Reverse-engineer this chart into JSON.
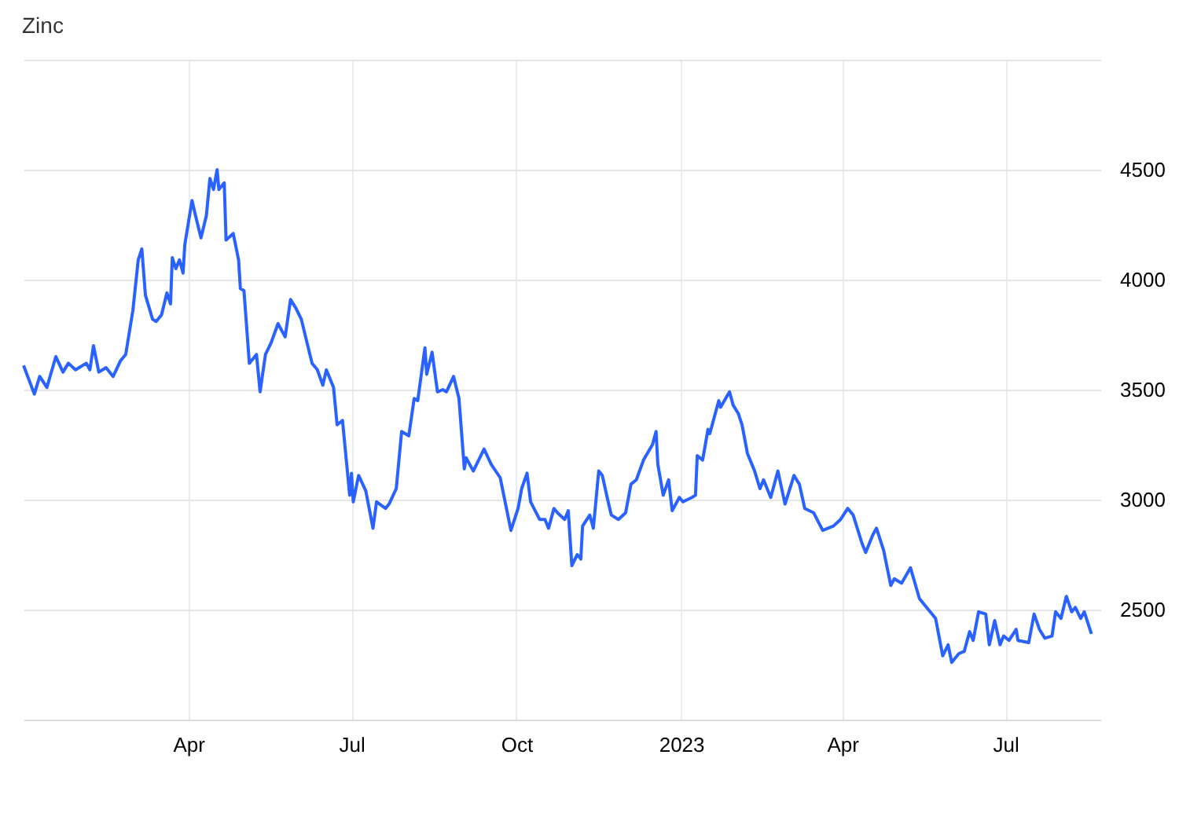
{
  "chart_data": {
    "type": "line",
    "title": "Zinc",
    "x": [
      "2021-12-30",
      "2022-01-05",
      "2022-01-08",
      "2022-01-12",
      "2022-01-17",
      "2022-01-21",
      "2022-01-24",
      "2022-01-28",
      "2022-02-03",
      "2022-02-05",
      "2022-02-07",
      "2022-02-10",
      "2022-02-14",
      "2022-02-18",
      "2022-02-22",
      "2022-02-25",
      "2022-03-01",
      "2022-03-04",
      "2022-03-06",
      "2022-03-08",
      "2022-03-12",
      "2022-03-14",
      "2022-03-17",
      "2022-03-20",
      "2022-03-22",
      "2022-03-23",
      "2022-03-25",
      "2022-03-27",
      "2022-03-29",
      "2022-03-30",
      "2022-04-03",
      "2022-04-05",
      "2022-04-08",
      "2022-04-11",
      "2022-04-13",
      "2022-04-15",
      "2022-04-17",
      "2022-04-18",
      "2022-04-21",
      "2022-04-22",
      "2022-04-26",
      "2022-04-29",
      "2022-04-30",
      "2022-05-02",
      "2022-05-05",
      "2022-05-09",
      "2022-05-11",
      "2022-05-14",
      "2022-05-17",
      "2022-05-21",
      "2022-05-25",
      "2022-05-28",
      "2022-05-31",
      "2022-06-03",
      "2022-06-09",
      "2022-06-12",
      "2022-06-15",
      "2022-06-17",
      "2022-06-21",
      "2022-06-23",
      "2022-06-26",
      "2022-06-30",
      "2022-07-01",
      "2022-07-02",
      "2022-07-05",
      "2022-07-09",
      "2022-07-13",
      "2022-07-15",
      "2022-07-20",
      "2022-07-22",
      "2022-07-26",
      "2022-07-29",
      "2022-08-02",
      "2022-08-05",
      "2022-08-07",
      "2022-08-11",
      "2022-08-12",
      "2022-08-15",
      "2022-08-18",
      "2022-08-21",
      "2022-08-23",
      "2022-08-27",
      "2022-08-30",
      "2022-09-02",
      "2022-09-03",
      "2022-09-07",
      "2022-09-13",
      "2022-09-17",
      "2022-09-22",
      "2022-09-28",
      "2022-10-02",
      "2022-10-04",
      "2022-10-07",
      "2022-10-09",
      "2022-10-14",
      "2022-10-17",
      "2022-10-19",
      "2022-10-22",
      "2022-10-24",
      "2022-10-28",
      "2022-10-30",
      "2022-11-01",
      "2022-11-04",
      "2022-11-06",
      "2022-11-07",
      "2022-11-11",
      "2022-11-13",
      "2022-11-16",
      "2022-11-18",
      "2022-11-21",
      "2022-11-23",
      "2022-11-27",
      "2022-12-01",
      "2022-12-04",
      "2022-12-07",
      "2022-12-11",
      "2022-12-16",
      "2022-12-18",
      "2022-12-19",
      "2022-12-22",
      "2022-12-25",
      "2022-12-27",
      "2022-12-31",
      "2023-01-02",
      "2023-01-07",
      "2023-01-09",
      "2023-01-10",
      "2023-01-13",
      "2023-01-16",
      "2023-01-17",
      "2023-01-22",
      "2023-01-23",
      "2023-01-28",
      "2023-01-30",
      "2023-02-02",
      "2023-02-04",
      "2023-02-07",
      "2023-02-11",
      "2023-02-14",
      "2023-02-16",
      "2023-02-20",
      "2023-02-24",
      "2023-02-28",
      "2023-03-05",
      "2023-03-08",
      "2023-03-11",
      "2023-03-16",
      "2023-03-21",
      "2023-03-27",
      "2023-03-31",
      "2023-04-04",
      "2023-04-07",
      "2023-04-12",
      "2023-04-14",
      "2023-04-18",
      "2023-04-20",
      "2023-04-24",
      "2023-04-28",
      "2023-04-30",
      "2023-05-04",
      "2023-05-09",
      "2023-05-14",
      "2023-05-18",
      "2023-05-21",
      "2023-05-23",
      "2023-05-27",
      "2023-05-30",
      "2023-06-01",
      "2023-06-05",
      "2023-06-08",
      "2023-06-11",
      "2023-06-13",
      "2023-06-16",
      "2023-06-20",
      "2023-06-22",
      "2023-06-25",
      "2023-06-28",
      "2023-06-30",
      "2023-07-03",
      "2023-07-07",
      "2023-07-08",
      "2023-07-14",
      "2023-07-17",
      "2023-07-20",
      "2023-07-23",
      "2023-07-27",
      "2023-07-29",
      "2023-08-01",
      "2023-08-04",
      "2023-08-07",
      "2023-08-09",
      "2023-08-12",
      "2023-08-14",
      "2023-08-18"
    ],
    "series": [
      {
        "color": "#2962ff",
        "values": [
          3610,
          3480,
          3560,
          3510,
          3650,
          3580,
          3620,
          3590,
          3620,
          3590,
          3700,
          3580,
          3600,
          3560,
          3630,
          3660,
          3860,
          4090,
          4140,
          3930,
          3820,
          3810,
          3840,
          3940,
          3890,
          4100,
          4050,
          4090,
          4030,
          4160,
          4360,
          4290,
          4190,
          4290,
          4460,
          4410,
          4500,
          4410,
          4440,
          4180,
          4210,
          4090,
          3960,
          3950,
          3620,
          3660,
          3490,
          3660,
          3710,
          3800,
          3740,
          3910,
          3870,
          3820,
          3620,
          3590,
          3520,
          3590,
          3510,
          3340,
          3360,
          3020,
          3120,
          2990,
          3110,
          3040,
          2870,
          2990,
          2960,
          2980,
          3050,
          3310,
          3290,
          3460,
          3450,
          3690,
          3570,
          3670,
          3490,
          3500,
          3490,
          3560,
          3460,
          3140,
          3190,
          3130,
          3230,
          3160,
          3100,
          2860,
          2960,
          3050,
          3120,
          2990,
          2910,
          2910,
          2870,
          2960,
          2940,
          2910,
          2950,
          2700,
          2750,
          2730,
          2880,
          2930,
          2870,
          3130,
          3110,
          3000,
          2930,
          2910,
          2940,
          3070,
          3090,
          3180,
          3250,
          3310,
          3160,
          3020,
          3090,
          2950,
          3010,
          2990,
          3010,
          3020,
          3200,
          3180,
          3320,
          3300,
          3450,
          3420,
          3490,
          3430,
          3390,
          3340,
          3210,
          3130,
          3050,
          3090,
          3010,
          3130,
          2980,
          3110,
          3070,
          2960,
          2940,
          2860,
          2880,
          2910,
          2960,
          2930,
          2800,
          2760,
          2840,
          2870,
          2770,
          2610,
          2640,
          2620,
          2690,
          2550,
          2510,
          2480,
          2460,
          2290,
          2340,
          2260,
          2300,
          2310,
          2400,
          2360,
          2490,
          2480,
          2340,
          2450,
          2340,
          2380,
          2360,
          2410,
          2360,
          2350,
          2480,
          2410,
          2370,
          2380,
          2490,
          2460,
          2560,
          2490,
          2510,
          2460,
          2490,
          2390
        ]
      }
    ],
    "xlim": [
      "2021-12-30",
      "2023-08-23"
    ],
    "xticks": [
      {
        "value": "2022-04-01",
        "label": "Apr"
      },
      {
        "value": "2022-07-01",
        "label": "Jul"
      },
      {
        "value": "2022-10-01",
        "label": "Oct"
      },
      {
        "value": "2023-01-01",
        "label": "2023"
      },
      {
        "value": "2023-04-01",
        "label": "Apr"
      },
      {
        "value": "2023-07-01",
        "label": "Jul"
      }
    ],
    "ylim": [
      2000,
      5000
    ],
    "yticks": [
      2500,
      3000,
      3500,
      4000,
      4500,
      {
        "value": 5000,
        "label": null
      }
    ],
    "grid": true
  }
}
